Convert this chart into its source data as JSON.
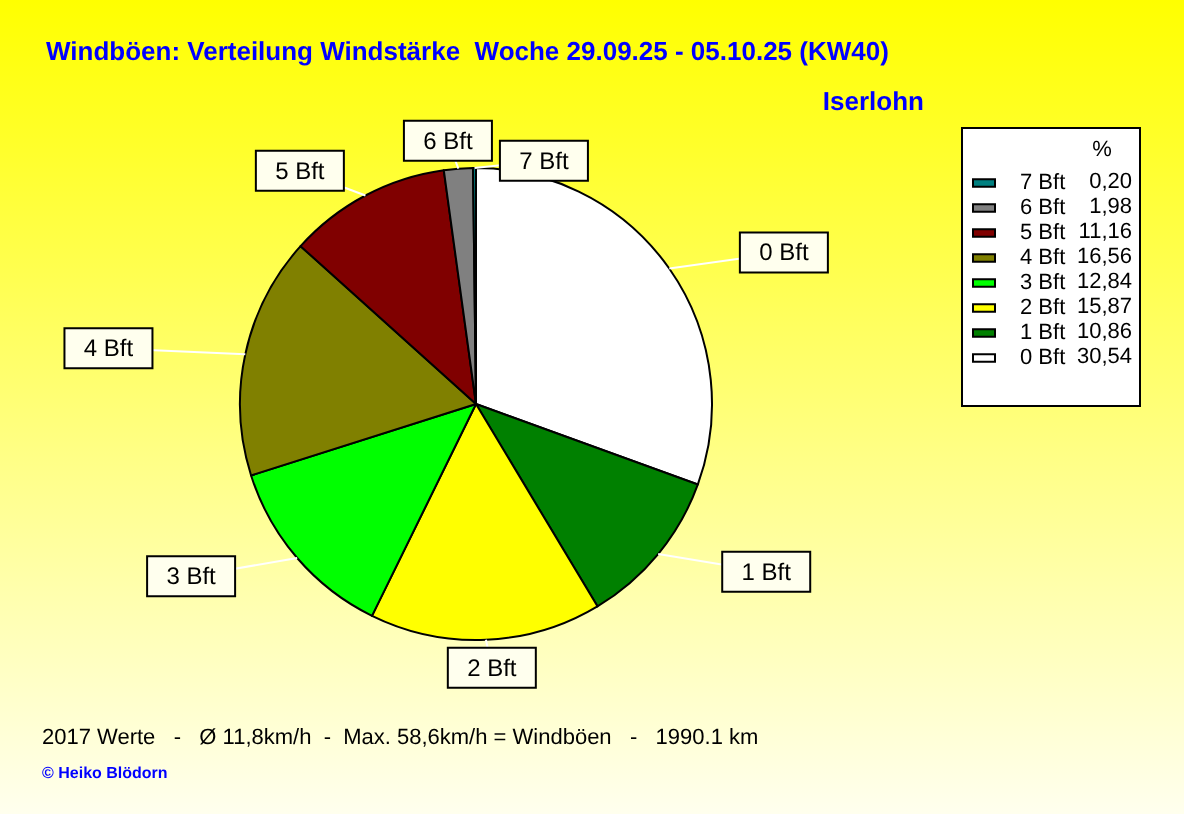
{
  "chart_data": {
    "type": "pie",
    "title": "Windböen: Verteilung Windstärke  Woche 29.09.25 - 05.10.25 (KW40)",
    "subtitle": "Iserlohn",
    "legend_title": "%",
    "categories": [
      "0 Bft",
      "1 Bft",
      "2 Bft",
      "3 Bft",
      "4 Bft",
      "5 Bft",
      "6 Bft",
      "7 Bft"
    ],
    "values": [
      30.54,
      10.86,
      15.87,
      12.84,
      16.56,
      11.16,
      1.98,
      0.2
    ],
    "colors": [
      "#ffffff",
      "#008000",
      "#ffff00",
      "#00ff00",
      "#808000",
      "#800000",
      "#808080",
      "#008080"
    ],
    "value_labels": [
      "30,54",
      "10,86",
      "15,87",
      "12,84",
      "16,56",
      "11,16",
      "1,98",
      "0,20"
    ],
    "legend": "top right",
    "annotations": [
      "2017 Werte   -   Ø 11,8km/h  -  Max. 58,6km/h = Windböen   -   1990.1 km",
      "© Heiko Blödorn"
    ]
  }
}
